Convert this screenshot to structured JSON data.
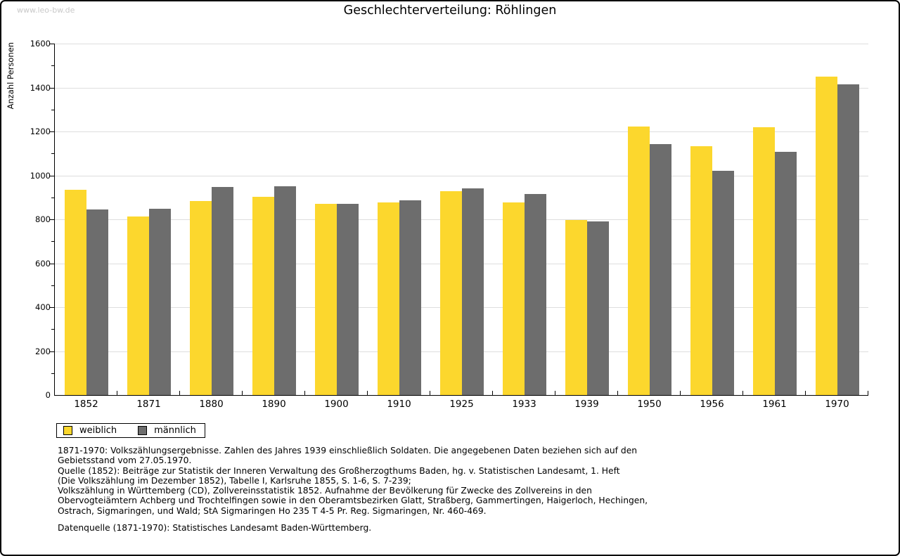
{
  "page": {
    "watermark": "www.leo-bw.de"
  },
  "chart_data": {
    "type": "bar",
    "title": "Geschlechterverteilung: Röhlingen",
    "ylabel": "Anzahl Personen",
    "xlabel": "",
    "categories": [
      "1852",
      "1871",
      "1880",
      "1890",
      "1900",
      "1910",
      "1925",
      "1933",
      "1939",
      "1950",
      "1956",
      "1961",
      "1970"
    ],
    "series": [
      {
        "name": "weiblich",
        "color": "#fcd72d",
        "values": [
          933,
          812,
          883,
          904,
          871,
          878,
          928,
          878,
          797,
          1224,
          1134,
          1220,
          1451
        ]
      },
      {
        "name": "männlich",
        "color": "#6d6d6d",
        "values": [
          846,
          848,
          947,
          950,
          870,
          886,
          941,
          914,
          792,
          1141,
          1022,
          1106,
          1413
        ]
      }
    ],
    "ylim": [
      0,
      1600
    ],
    "ytick_step": 200,
    "ytick_minor_step": 100,
    "grid": true,
    "legend_position": "bottom-left",
    "axis_color": "#000000",
    "gridline_color": "#dedede"
  },
  "notes": {
    "lines": [
      "1871-1970: Volkszählungsergebnisse. Zahlen des Jahres 1939 einschließlich Soldaten. Die angegebenen Daten beziehen sich auf den",
      "Gebietsstand vom 27.05.1970.",
      "Quelle (1852): Beiträge zur Statistik der Inneren Verwaltung des Großherzogthums Baden, hg. v. Statistischen Landesamt, 1. Heft",
      "(Die Volkszählung im Dezember 1852), Tabelle I, Karlsruhe 1855, S. 1-6, S. 7-239;",
      "Volkszählung in Württemberg (CD), Zollvereinsstatistik 1852. Aufnahme der Bevölkerung für Zwecke des Zollvereins in den",
      "Obervogteiämtern Achberg und Trochtelfingen sowie in den Oberamtsbezirken Glatt, Straßberg, Gammertingen, Haigerloch, Hechingen,",
      "Ostrach, Sigmaringen, und Wald; StA Sigmaringen Ho 235 T 4-5 Pr. Reg. Sigmaringen, Nr. 460-469."
    ],
    "datasource": "Datenquelle (1871-1970): Statistisches Landesamt Baden-Württemberg."
  }
}
